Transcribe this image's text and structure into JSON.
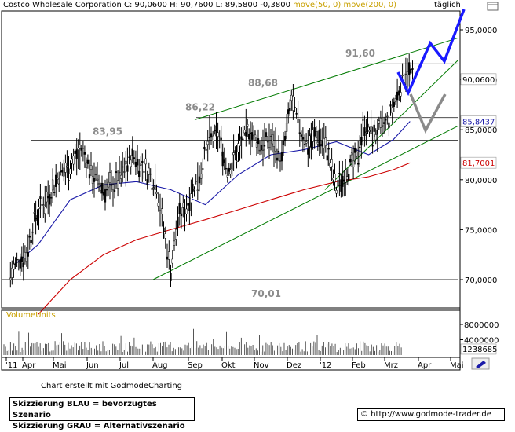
{
  "header": {
    "title": "Costco Wholesale Corporation",
    "ohlc": "C: 90,0600  H: 90,7600  L: 89,5800  -0,3800",
    "moving_averages": "move(50, 0) move(200, 0)",
    "period": "täglich"
  },
  "footer": {
    "credit": "Chart erstellt mit GodmodeCharting",
    "legend_line1": "Skizzierung BLAU = bevorzugtes Szenario",
    "legend_line2": "Skizzierung GRAU = Alternativszenario",
    "copyright": "©",
    "url": "http://www.godmode-trader.de"
  },
  "colors": {
    "price": "#000000",
    "ma50": "#1a1aa8",
    "ma200": "#cc0000",
    "trendline": "#007a00",
    "scenario_blue": "#1a1aff",
    "scenario_grey": "#8a8a8a",
    "level_label": "#8c8c8c",
    "volume": "#555555"
  },
  "chart_data": {
    "type": "line",
    "title": "Costco Wholesale Corporation",
    "ylim": [
      67,
      97
    ],
    "x_ticks": [
      "'11",
      "Apr",
      "Mai",
      "Jun",
      "Jul",
      "Aug",
      "Sep",
      "Okt",
      "Nov",
      "Dez",
      "'12",
      "Feb",
      "Mrz",
      "Apr",
      "Mai"
    ],
    "y_ticks": [
      "95,0000",
      "90,0000",
      "85,0000",
      "80,0000",
      "75,0000",
      "70,0000"
    ],
    "price_labels": [
      {
        "label": "90,0600",
        "series": "Close",
        "value": 90.06
      },
      {
        "label": "85,8437",
        "series": "MA50",
        "value": 85.84
      },
      {
        "label": "81,7001",
        "series": "MA200",
        "value": 81.7
      }
    ],
    "levels": [
      {
        "label": "83,95",
        "value": 83.95
      },
      {
        "label": "86,22",
        "value": 86.22
      },
      {
        "label": "88,68",
        "value": 88.68
      },
      {
        "label": "91,60",
        "value": 91.6
      },
      {
        "label": "70,01",
        "value": 70.01
      }
    ],
    "series": [
      {
        "name": "Close",
        "points": [
          [
            "'11",
            70.5
          ],
          [
            "'11",
            72.0
          ],
          [
            "Apr",
            72.5
          ],
          [
            "Apr",
            76.0
          ],
          [
            "Apr",
            77.5
          ],
          [
            "Apr",
            78.5
          ],
          [
            "Mai",
            80.5
          ],
          [
            "Mai",
            81.5
          ],
          [
            "Mai",
            83.0
          ],
          [
            "Jun",
            80.5
          ],
          [
            "Jun",
            79.0
          ],
          [
            "Jun",
            79.5
          ],
          [
            "Jul",
            81.0
          ],
          [
            "Jul",
            82.5
          ],
          [
            "Jul",
            81.5
          ],
          [
            "Jul",
            80.5
          ],
          [
            "Aug",
            79.5
          ],
          [
            "Aug",
            75.0
          ],
          [
            "Aug",
            71.0
          ],
          [
            "Aug",
            76.0
          ],
          [
            "Aug",
            77.0
          ],
          [
            "Sep",
            79.0
          ],
          [
            "Sep",
            81.0
          ],
          [
            "Sep",
            84.0
          ],
          [
            "Sep",
            84.5
          ],
          [
            "Okt",
            81.0
          ],
          [
            "Okt",
            83.0
          ],
          [
            "Okt",
            85.0
          ],
          [
            "Nov",
            83.5
          ],
          [
            "Nov",
            84.0
          ],
          [
            "Nov",
            82.0
          ],
          [
            "Dez",
            88.0
          ],
          [
            "Dez",
            85.0
          ],
          [
            "Dez",
            83.5
          ],
          [
            "Dez",
            84.5
          ],
          [
            "'12",
            83.5
          ],
          [
            "'12",
            79.0
          ],
          [
            "'12",
            81.0
          ],
          [
            "Feb",
            82.0
          ],
          [
            "Feb",
            85.5
          ],
          [
            "Feb",
            84.5
          ],
          [
            "Feb",
            85.0
          ],
          [
            "Mrz",
            86.0
          ],
          [
            "Mrz",
            88.5
          ],
          [
            "Mrz",
            91.0
          ],
          [
            "Mrz",
            90.06
          ]
        ]
      },
      {
        "name": "MA50",
        "points": [
          [
            "'11",
            71.5
          ],
          [
            "Apr",
            73.5
          ],
          [
            "Mai",
            78.0
          ],
          [
            "Jun",
            79.5
          ],
          [
            "Jul",
            79.8
          ],
          [
            "Aug",
            79.0
          ],
          [
            "Sep",
            77.5
          ],
          [
            "Okt",
            80.5
          ],
          [
            "Nov",
            82.5
          ],
          [
            "Dez",
            83.0
          ],
          [
            "'12",
            83.8
          ],
          [
            "Feb",
            82.5
          ],
          [
            "Mrz",
            84.0
          ],
          [
            "Mrz",
            85.84
          ]
        ]
      },
      {
        "name": "MA200",
        "points": [
          [
            "Apr",
            66.5
          ],
          [
            "Mai",
            70.0
          ],
          [
            "Jun",
            72.5
          ],
          [
            "Jul",
            74.0
          ],
          [
            "Aug",
            75.0
          ],
          [
            "Sep",
            76.0
          ],
          [
            "Okt",
            77.0
          ],
          [
            "Nov",
            78.0
          ],
          [
            "Dez",
            79.0
          ],
          [
            "'12",
            79.8
          ],
          [
            "Feb",
            80.3
          ],
          [
            "Mrz",
            81.0
          ],
          [
            "Mrz",
            81.7
          ]
        ]
      }
    ],
    "volume": {
      "label": "VolumeUnits",
      "y_ticks": [
        "8000000",
        "4000000"
      ],
      "last_value_label": "1238685",
      "last_value": 1238685
    }
  }
}
